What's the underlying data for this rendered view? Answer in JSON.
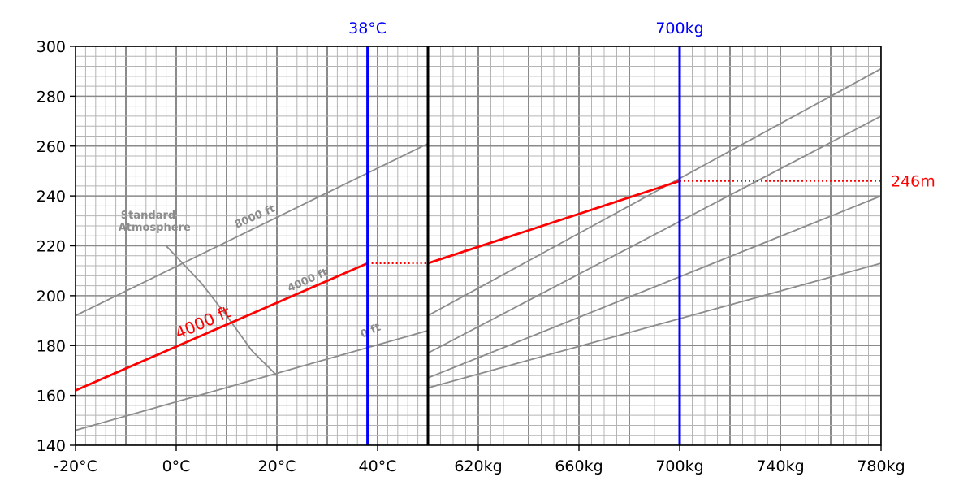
{
  "chart_data": {
    "type": "line",
    "title": "",
    "xlabel": "",
    "ylabel": "",
    "ylim": [
      140,
      300
    ],
    "y_ticks": [
      140,
      160,
      180,
      200,
      220,
      240,
      260,
      280,
      300
    ],
    "left_panel": {
      "x_range_celsius": [
        -20,
        50
      ],
      "x_tick_values": [
        -20,
        0,
        20,
        40
      ],
      "x_tick_labels": [
        "-20°C",
        "0°C",
        "20°C",
        "40°C"
      ]
    },
    "right_panel": {
      "x_range_kg": [
        600,
        780
      ],
      "x_tick_values": [
        620,
        660,
        700,
        740,
        780
      ],
      "x_tick_labels": [
        "620kg",
        "660kg",
        "700kg",
        "740kg",
        "780kg"
      ]
    },
    "background_lines": {
      "left": [
        {
          "name": "8000 ft",
          "points": [
            [
              -20,
              192
            ],
            [
              50,
              261
            ]
          ]
        },
        {
          "name": "4000 ft",
          "points": [
            [
              -20,
              162
            ],
            [
              38,
              213
            ]
          ]
        },
        {
          "name": "0 ft",
          "points": [
            [
              -20,
              146
            ],
            [
              50,
              186
            ]
          ]
        },
        {
          "name": "Standard Atmosphere",
          "points": [
            [
              -2,
              220
            ],
            [
              5,
              205
            ],
            [
              10,
              192
            ],
            [
              15,
              178
            ],
            [
              20,
              168
            ],
            [
              20,
              157
            ]
          ]
        }
      ],
      "right": [
        {
          "points": [
            [
              600,
              192
            ],
            [
              780,
              291
            ]
          ]
        },
        {
          "points": [
            [
              600,
              177
            ],
            [
              780,
              272
            ]
          ]
        },
        {
          "points": [
            [
              600,
              167
            ],
            [
              780,
              240
            ]
          ]
        },
        {
          "points": [
            [
              600,
              163
            ],
            [
              780,
              213
            ]
          ]
        }
      ],
      "labels": [
        "Standard",
        "Atmosphere",
        "8000 ft",
        "4000 ft",
        "0 ft"
      ]
    },
    "series": [
      {
        "name": "4000 ft",
        "color": "#ff0000",
        "panel": "left",
        "points": [
          [
            -20,
            162
          ],
          [
            38,
            213
          ]
        ]
      },
      {
        "color": "#ff0000",
        "panel": "right",
        "points": [
          [
            600,
            213
          ],
          [
            700,
            246
          ]
        ]
      }
    ],
    "connectors": [
      {
        "panel": "left",
        "from": [
          38,
          213
        ],
        "to": [
          50,
          213
        ],
        "style": "dotted",
        "color": "#ff0000"
      },
      {
        "panel": "right",
        "from": [
          700,
          246
        ],
        "to": [
          780,
          246
        ],
        "style": "dotted",
        "color": "#ff0000"
      }
    ],
    "vertical_markers": [
      {
        "label": "38°C",
        "panel": "left",
        "value": 38,
        "color": "#0000ff"
      },
      {
        "label": "700kg",
        "panel": "right",
        "value": 700,
        "color": "#0000ff"
      }
    ],
    "result": {
      "label": "246m",
      "value": 246,
      "color": "#ff0000"
    },
    "divider_color": "#000000",
    "grid": true
  }
}
